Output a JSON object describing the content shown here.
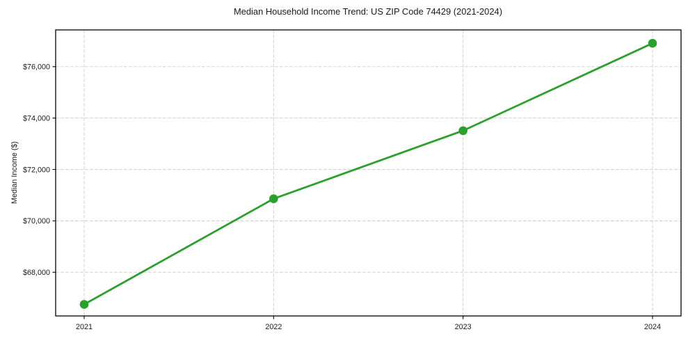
{
  "chart_data": {
    "type": "line",
    "title": "Median Household Income Trend: US ZIP Code 74429 (2021-2024)",
    "xlabel": "",
    "ylabel": "Median Income ($)",
    "categories": [
      "2021",
      "2022",
      "2023",
      "2024"
    ],
    "values": [
      66750,
      70860,
      73510,
      76910
    ],
    "y_ticks": [
      68000,
      70000,
      72000,
      74000,
      76000
    ],
    "y_tick_labels": [
      "$68,000",
      "$70,000",
      "$72,000",
      "$74,000",
      "$76,000"
    ],
    "ylim": [
      66300,
      77430
    ],
    "grid": true,
    "grid_style": "dashed",
    "legend": "none",
    "marker": "circle",
    "line_color": "#2ca02c",
    "grid_color": "#cccccc",
    "axis_color": "#000000",
    "text_color": "#1a1a1a",
    "background_color": "#ffffff"
  }
}
